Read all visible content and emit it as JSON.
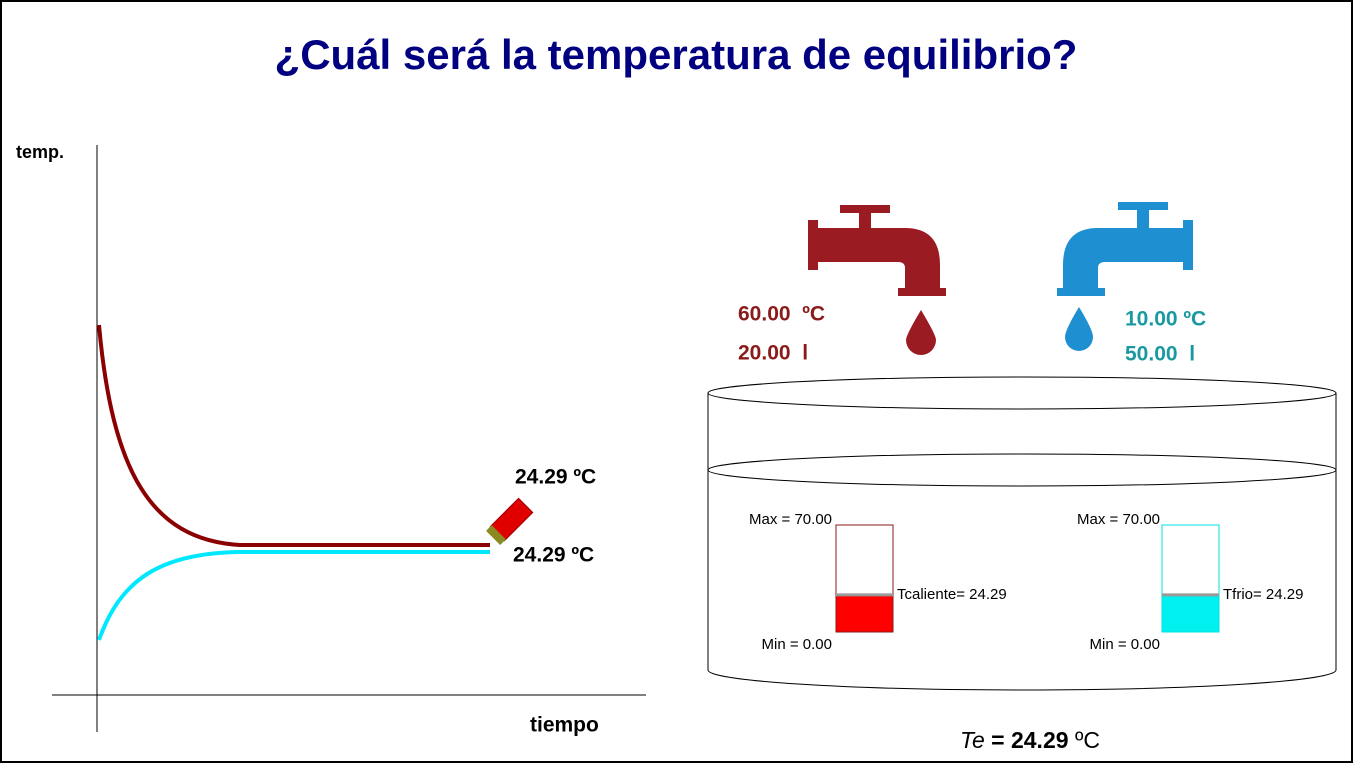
{
  "header": {
    "title": "¿Cuál será la temperatura de equilibrio?"
  },
  "graph": {
    "y_axis_label": "temp.",
    "x_axis_label": "tiempo",
    "hot_end_label": "24.29 ºC",
    "cold_end_label": "24.29 ºC"
  },
  "hot_tap": {
    "temperature": "60.00  ºC",
    "volume": "20.00  l"
  },
  "cold_tap": {
    "temperature": "10.00 ºC",
    "volume": "50.00  l"
  },
  "thermometers": [
    {
      "max_label": "Max = 70.00",
      "min_label": "Min = 0.00",
      "reading_label": "Tcaliente= 24.29",
      "max": 70,
      "min": 0,
      "value": 24.29,
      "color": "#ff0000",
      "border": "#8b1a1a"
    },
    {
      "max_label": "Max = 70.00",
      "min_label": "Min = 0.00",
      "reading_label": "Tfrio= 24.29",
      "max": 70,
      "min": 0,
      "value": 24.29,
      "color": "#00f0f0",
      "border": "#00e0e0"
    }
  ],
  "equilibrium": {
    "symbol": "Te",
    "value_text": "= 24.29",
    "unit": "ºC"
  }
}
